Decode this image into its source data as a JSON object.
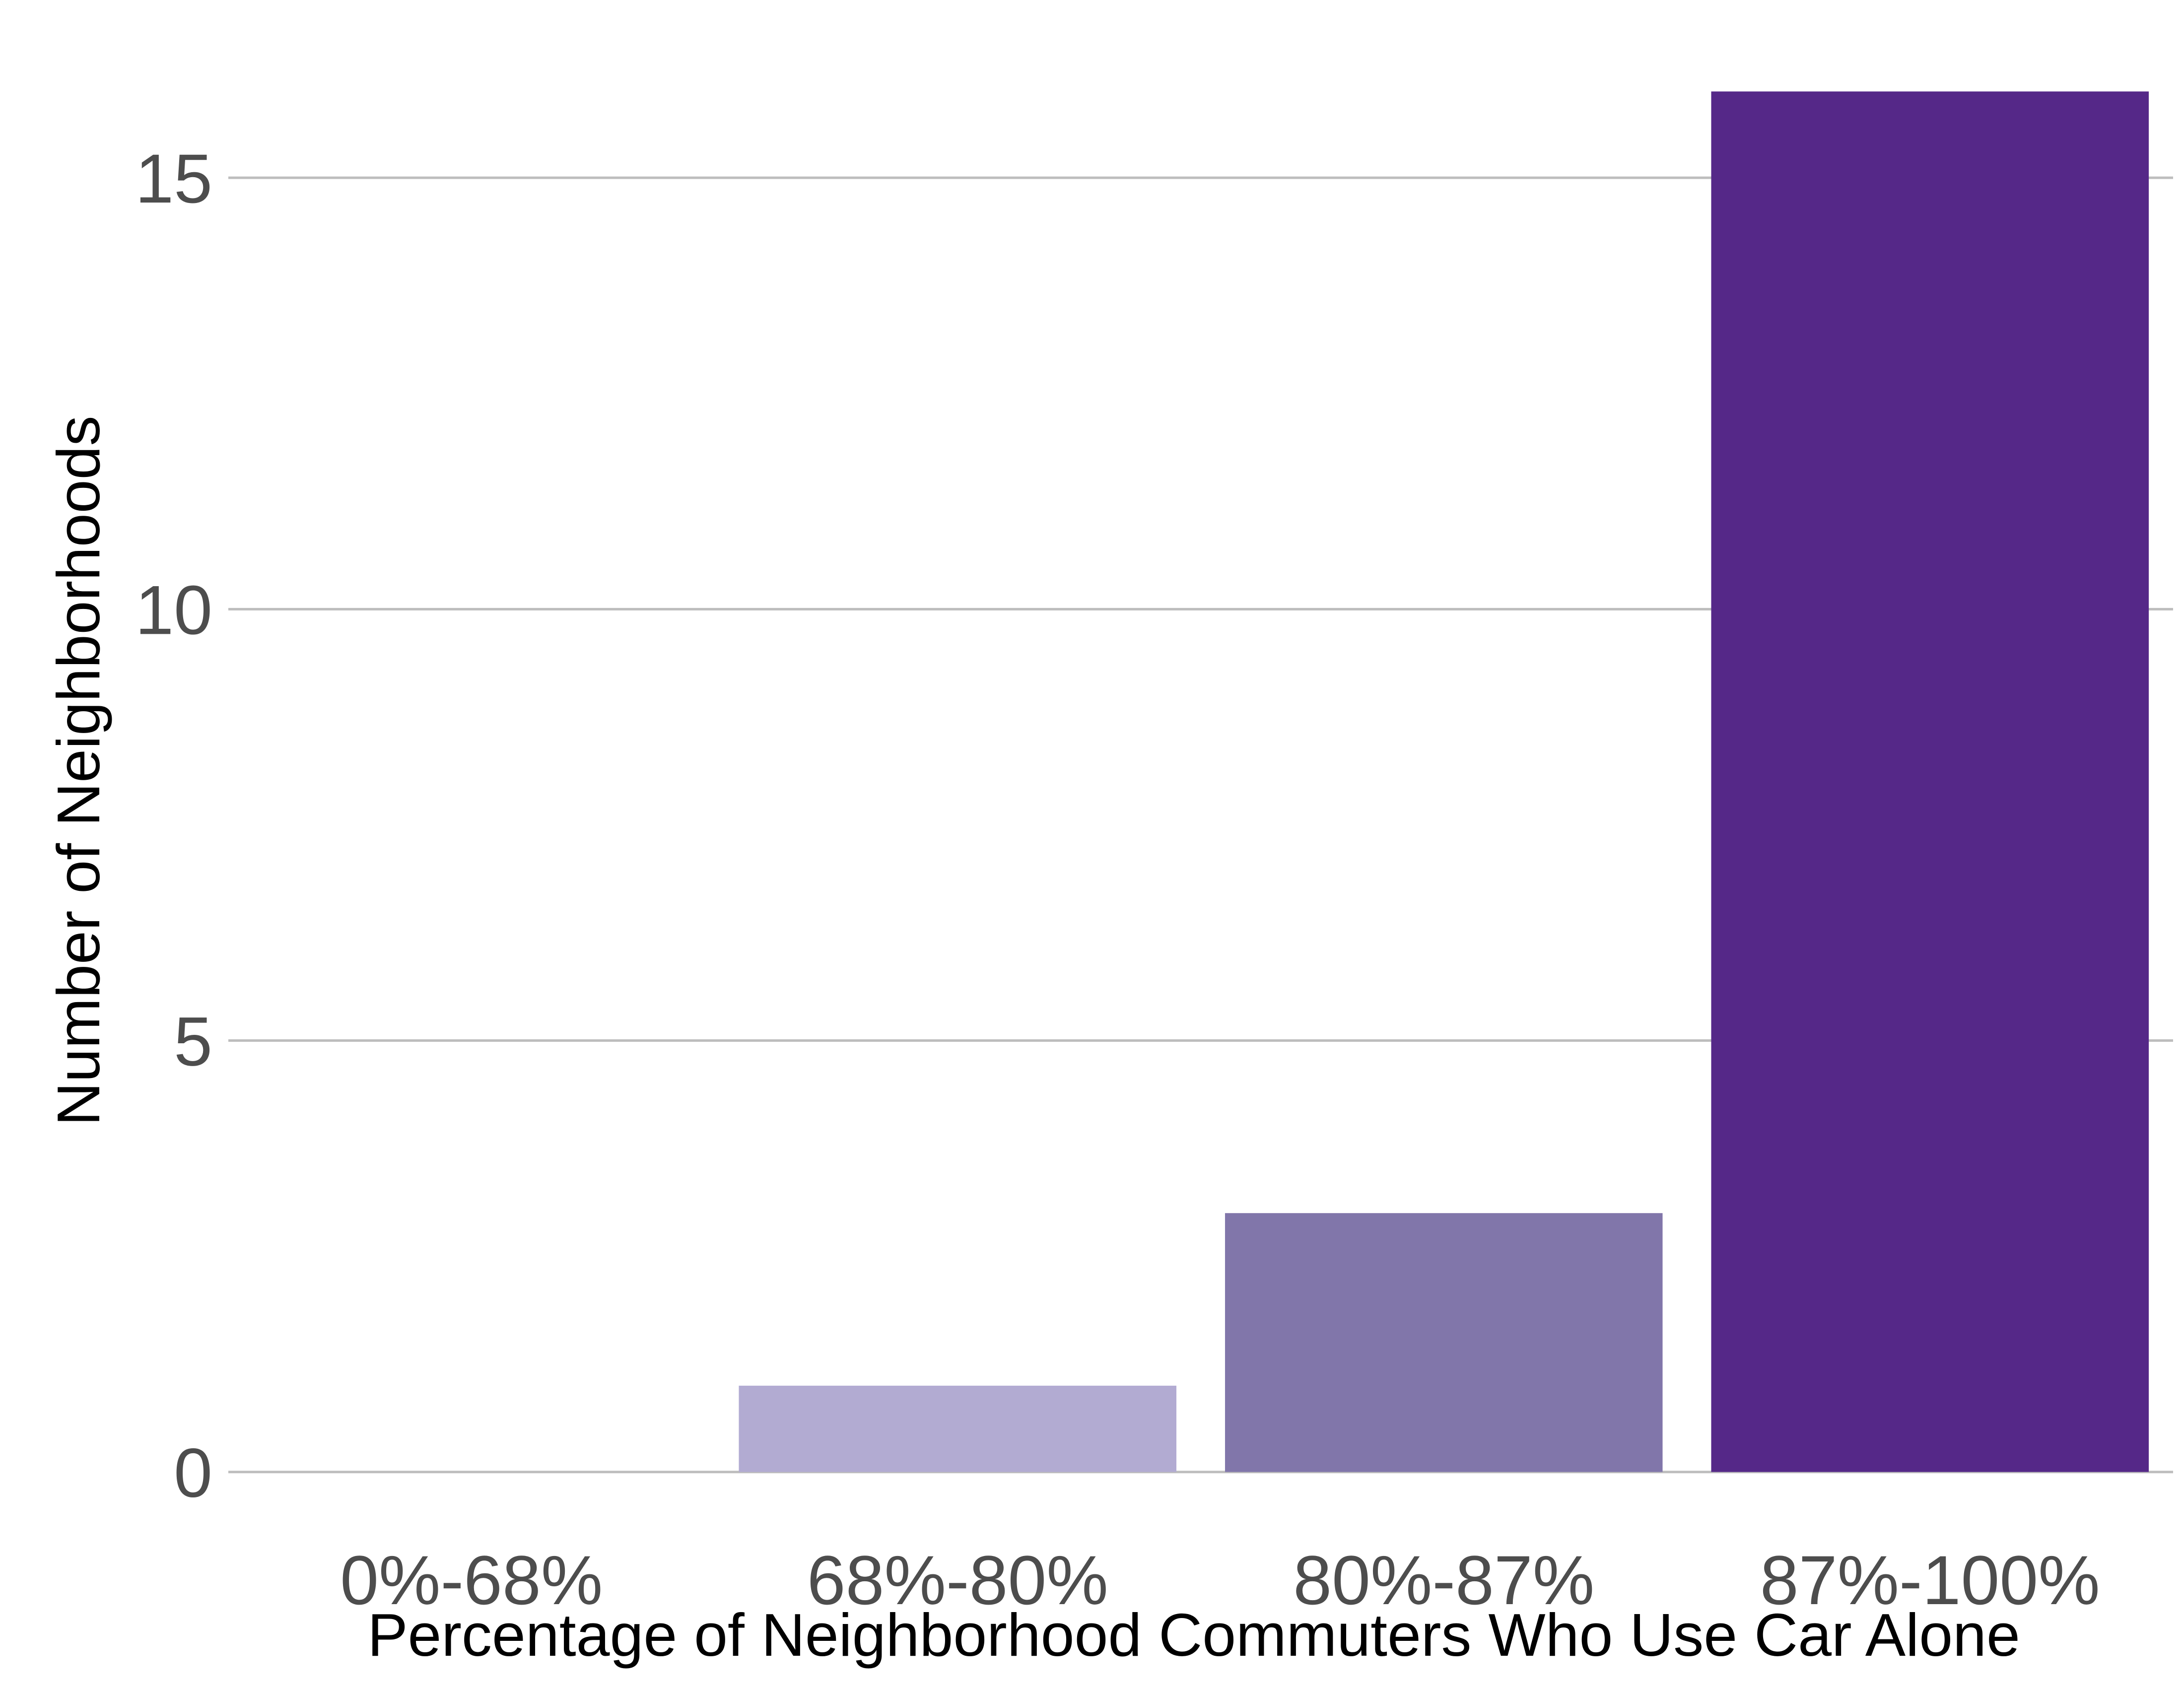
{
  "chart_data": {
    "type": "bar",
    "title": "",
    "xlabel": "Percentage of Neighborhood Commuters Who Use Car Alone",
    "ylabel": "Number of Neighborhoods",
    "categories": [
      "0%-68%",
      "68%-80%",
      "80%-87%",
      "87%-100%"
    ],
    "values": [
      0,
      1,
      3,
      16
    ],
    "bar_colors": [
      "#efedf5",
      "#b2abd2",
      "#8176aa",
      "#552888"
    ],
    "ylim": [
      -0.6,
      16.6
    ],
    "yticks": [
      0,
      5,
      10,
      15
    ],
    "ytick_labels": [
      "0",
      "5",
      "10",
      "15"
    ],
    "grid": "horizontal",
    "legend": "none"
  }
}
